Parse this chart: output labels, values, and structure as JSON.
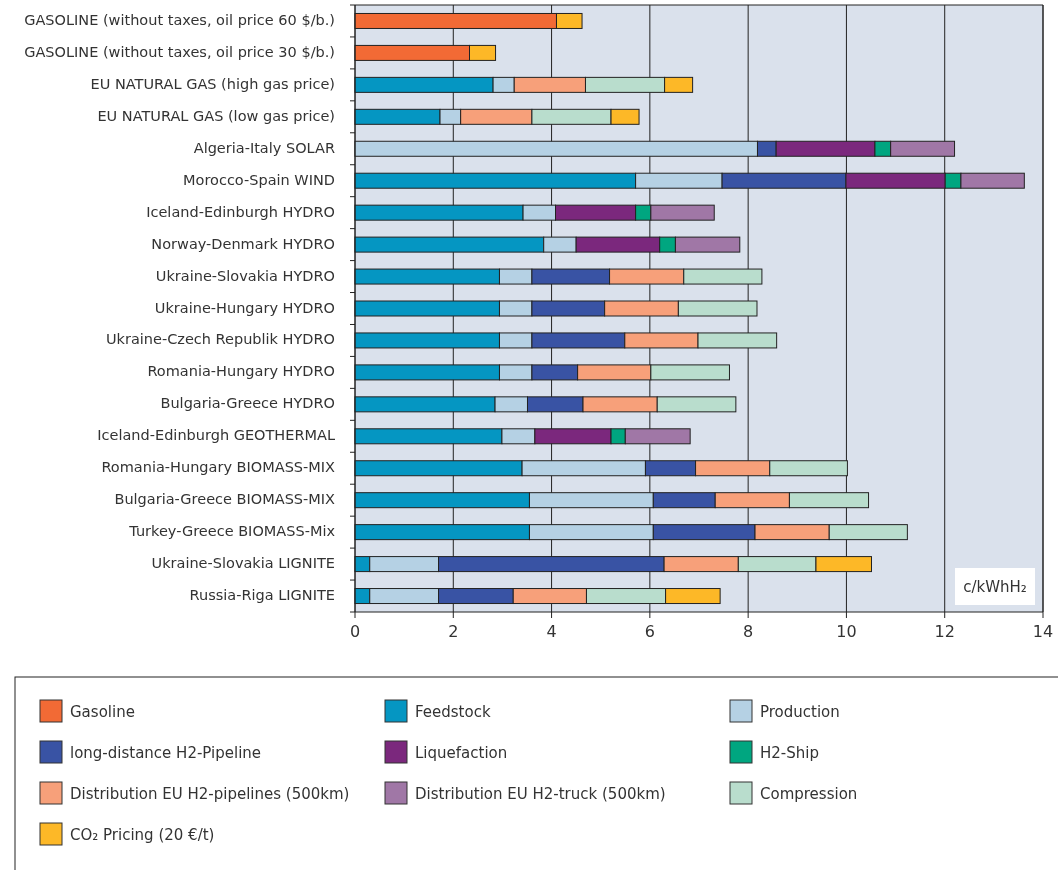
{
  "chart_data": {
    "type": "bar",
    "orientation": "horizontal",
    "stacked": true,
    "xlabel": "c/kWhH₂",
    "categories": [
      "GASOLINE (without taxes, oil price 60 $/b.)",
      "GASOLINE (without taxes, oil price 30 $/b.)",
      "EU NATURAL GAS (high gas price)",
      "EU NATURAL GAS (low gas price)",
      "Algeria-Italy SOLAR",
      "Morocco-Spain WIND",
      "Iceland-Edinburgh HYDRO",
      "Norway-Denmark HYDRO",
      "Ukraine-Slovakia HYDRO",
      "Ukraine-Hungary HYDRO",
      "Ukraine-Czech Republik HYDRO",
      "Romania-Hungary HYDRO",
      "Bulgaria-Greece HYDRO",
      "Iceland-Edinburgh GEOTHERMAL",
      "Romania-Hungary BIOMASS-MIX",
      "Bulgaria-Greece BIOMASS-MIX",
      "Turkey-Greece BIOMASS-Mix",
      "Ukraine-Slovakia LIGNITE",
      "Russia-Riga LIGNITE"
    ],
    "series": [
      {
        "name": "Gasoline",
        "color": "#f26a35",
        "values": [
          4.1,
          2.33,
          null,
          null,
          null,
          null,
          null,
          null,
          null,
          null,
          null,
          null,
          null,
          null,
          null,
          null,
          null,
          null,
          null
        ]
      },
      {
        "name": "Feedstock",
        "color": "#0596c2",
        "values": [
          null,
          null,
          2.81,
          1.73,
          null,
          5.71,
          3.42,
          3.84,
          2.94,
          2.94,
          2.94,
          2.94,
          2.85,
          2.99,
          3.4,
          3.55,
          3.55,
          0.3,
          0.3
        ]
      },
      {
        "name": "Production",
        "color": "#b5d1e4",
        "values": [
          null,
          null,
          0.43,
          0.42,
          8.19,
          1.76,
          0.66,
          0.66,
          0.66,
          0.66,
          0.66,
          0.66,
          0.66,
          0.67,
          2.51,
          2.52,
          2.52,
          1.4,
          1.4
        ]
      },
      {
        "name": "long-distance H2-Pipeline",
        "color": "#3953a4",
        "values": [
          null,
          null,
          null,
          null,
          0.38,
          2.52,
          null,
          null,
          1.58,
          1.48,
          1.89,
          0.93,
          1.13,
          null,
          1.02,
          1.26,
          2.07,
          4.59,
          1.52
        ]
      },
      {
        "name": "Liquefaction",
        "color": "#7b287d",
        "values": [
          null,
          null,
          null,
          null,
          2.01,
          2.02,
          1.63,
          1.7,
          null,
          null,
          null,
          null,
          null,
          1.55,
          null,
          null,
          null,
          null,
          null
        ]
      },
      {
        "name": "H2-Ship",
        "color": "#00a680",
        "values": [
          null,
          null,
          null,
          null,
          0.32,
          0.32,
          0.31,
          0.32,
          null,
          null,
          null,
          null,
          null,
          0.29,
          null,
          null,
          null,
          null,
          null
        ]
      },
      {
        "name": "Distribution EU H2-pipelines (500km)",
        "color": "#f7a07a",
        "values": [
          null,
          null,
          1.45,
          1.45,
          null,
          null,
          null,
          null,
          1.51,
          1.5,
          1.49,
          1.49,
          1.51,
          null,
          1.51,
          1.51,
          1.51,
          1.51,
          1.49
        ]
      },
      {
        "name": "Distribution EU H2-truck (500km)",
        "color": "#a077a6",
        "values": [
          null,
          null,
          null,
          null,
          1.3,
          1.29,
          1.29,
          1.31,
          null,
          null,
          null,
          null,
          null,
          1.32,
          null,
          null,
          null,
          null,
          null
        ]
      },
      {
        "name": "Compression",
        "color": "#b9ddcd",
        "values": [
          null,
          null,
          1.61,
          1.61,
          null,
          null,
          null,
          null,
          1.59,
          1.6,
          1.6,
          1.6,
          1.6,
          null,
          1.58,
          1.61,
          1.59,
          1.58,
          1.61
        ]
      },
      {
        "name": "CO₂ Pricing (20 €/t)",
        "color": "#fdb827",
        "values": [
          0.52,
          0.53,
          0.57,
          0.57,
          null,
          null,
          null,
          null,
          null,
          null,
          null,
          null,
          null,
          null,
          null,
          null,
          null,
          1.13,
          1.11
        ]
      }
    ],
    "xlim": [
      0,
      14
    ],
    "xticks": [
      0,
      2,
      4,
      6,
      8,
      10,
      12,
      14
    ],
    "grid": "x",
    "legend": "bottom"
  }
}
